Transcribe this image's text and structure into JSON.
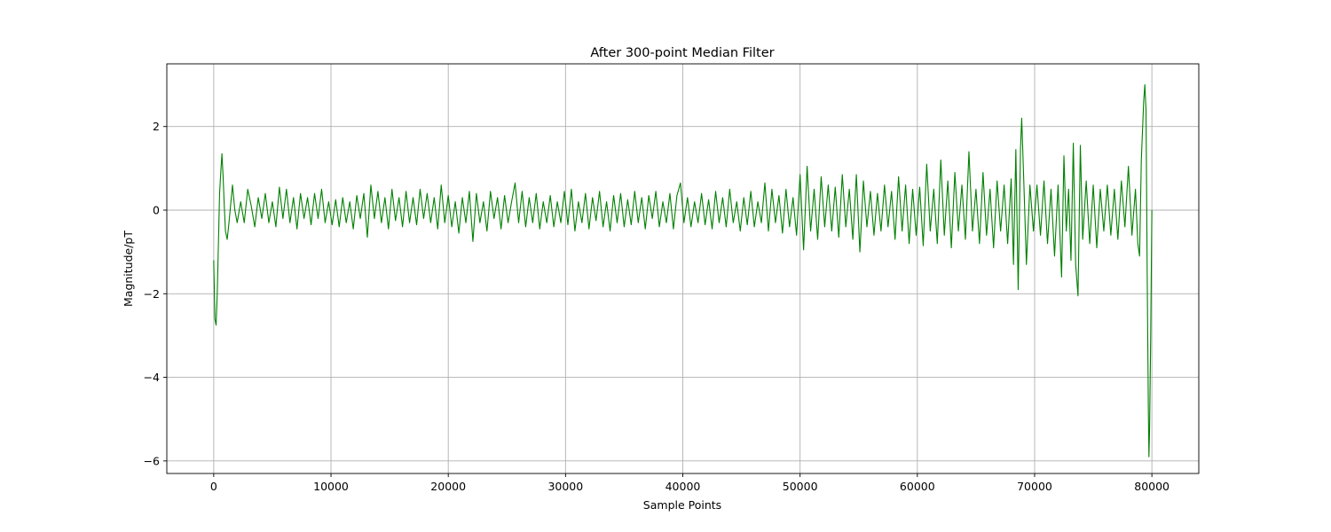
{
  "chart_data": {
    "type": "line",
    "title": "After 300-point Median Filter",
    "xlabel": "Sample Points",
    "ylabel": "Magnitude/pT",
    "xlim": [
      -4000,
      84000
    ],
    "ylim": [
      -6.3,
      3.5
    ],
    "x_ticks": [
      0,
      10000,
      20000,
      30000,
      40000,
      50000,
      60000,
      70000,
      80000
    ],
    "y_ticks": [
      -6,
      -4,
      -2,
      0,
      2
    ],
    "y_tick_labels": [
      "−6",
      "−4",
      "−2",
      "0",
      "2"
    ],
    "grid": true,
    "series": [
      {
        "color": "#008000",
        "points": [
          [
            0,
            -1.2
          ],
          [
            100,
            -2.6
          ],
          [
            200,
            -2.75
          ],
          [
            300,
            -2.0
          ],
          [
            400,
            -0.8
          ],
          [
            500,
            0.4
          ],
          [
            600,
            0.9
          ],
          [
            700,
            1.35
          ],
          [
            800,
            0.8
          ],
          [
            900,
            0.1
          ],
          [
            1000,
            -0.5
          ],
          [
            1150,
            -0.7
          ],
          [
            1300,
            -0.3
          ],
          [
            1500,
            0.3
          ],
          [
            1600,
            0.6
          ],
          [
            1800,
            0.0
          ],
          [
            2000,
            -0.3
          ],
          [
            2300,
            0.2
          ],
          [
            2600,
            -0.3
          ],
          [
            2900,
            0.5
          ],
          [
            3200,
            0.1
          ],
          [
            3500,
            -0.4
          ],
          [
            3800,
            0.3
          ],
          [
            4100,
            -0.2
          ],
          [
            4400,
            0.4
          ],
          [
            4700,
            -0.3
          ],
          [
            5000,
            0.2
          ],
          [
            5300,
            -0.4
          ],
          [
            5600,
            0.55
          ],
          [
            5900,
            -0.2
          ],
          [
            6200,
            0.5
          ],
          [
            6500,
            -0.3
          ],
          [
            6800,
            0.3
          ],
          [
            7100,
            -0.45
          ],
          [
            7400,
            0.4
          ],
          [
            7700,
            -0.2
          ],
          [
            8000,
            0.3
          ],
          [
            8300,
            -0.35
          ],
          [
            8600,
            0.4
          ],
          [
            8900,
            -0.2
          ],
          [
            9200,
            0.5
          ],
          [
            9500,
            -0.3
          ],
          [
            9800,
            0.2
          ],
          [
            10100,
            -0.35
          ],
          [
            10400,
            0.25
          ],
          [
            10700,
            -0.4
          ],
          [
            11000,
            0.3
          ],
          [
            11300,
            -0.3
          ],
          [
            11600,
            0.2
          ],
          [
            11900,
            -0.45
          ],
          [
            12200,
            0.35
          ],
          [
            12500,
            -0.2
          ],
          [
            12800,
            0.4
          ],
          [
            13100,
            -0.65
          ],
          [
            13400,
            0.6
          ],
          [
            13700,
            -0.2
          ],
          [
            14000,
            0.45
          ],
          [
            14300,
            -0.3
          ],
          [
            14600,
            0.3
          ],
          [
            14900,
            -0.45
          ],
          [
            15200,
            0.5
          ],
          [
            15500,
            -0.25
          ],
          [
            15800,
            0.3
          ],
          [
            16100,
            -0.4
          ],
          [
            16400,
            0.45
          ],
          [
            16700,
            -0.3
          ],
          [
            17000,
            0.3
          ],
          [
            17300,
            -0.35
          ],
          [
            17600,
            0.5
          ],
          [
            17900,
            -0.2
          ],
          [
            18200,
            0.4
          ],
          [
            18500,
            -0.3
          ],
          [
            18800,
            0.3
          ],
          [
            19100,
            -0.45
          ],
          [
            19400,
            0.6
          ],
          [
            19700,
            -0.3
          ],
          [
            20000,
            0.35
          ],
          [
            20300,
            -0.4
          ],
          [
            20600,
            0.2
          ],
          [
            20900,
            -0.55
          ],
          [
            21200,
            0.3
          ],
          [
            21500,
            -0.3
          ],
          [
            21800,
            0.45
          ],
          [
            22100,
            -0.75
          ],
          [
            22400,
            0.4
          ],
          [
            22700,
            -0.3
          ],
          [
            23000,
            0.2
          ],
          [
            23300,
            -0.5
          ],
          [
            23600,
            0.45
          ],
          [
            23900,
            -0.2
          ],
          [
            24200,
            0.3
          ],
          [
            24500,
            -0.45
          ],
          [
            24800,
            0.35
          ],
          [
            25100,
            -0.3
          ],
          [
            25400,
            0.2
          ],
          [
            25700,
            0.65
          ],
          [
            26000,
            -0.3
          ],
          [
            26300,
            0.45
          ],
          [
            26600,
            -0.4
          ],
          [
            26900,
            0.3
          ],
          [
            27200,
            -0.3
          ],
          [
            27500,
            0.4
          ],
          [
            27800,
            -0.45
          ],
          [
            28100,
            0.2
          ],
          [
            28400,
            -0.3
          ],
          [
            28700,
            0.35
          ],
          [
            29000,
            -0.4
          ],
          [
            29300,
            0.2
          ],
          [
            29600,
            -0.3
          ],
          [
            29900,
            0.45
          ],
          [
            30200,
            -0.35
          ],
          [
            30500,
            0.5
          ],
          [
            30800,
            -0.5
          ],
          [
            31100,
            0.2
          ],
          [
            31400,
            -0.3
          ],
          [
            31700,
            0.4
          ],
          [
            32000,
            -0.45
          ],
          [
            32300,
            0.3
          ],
          [
            32600,
            -0.25
          ],
          [
            32900,
            0.45
          ],
          [
            33200,
            -0.4
          ],
          [
            33500,
            0.2
          ],
          [
            33800,
            -0.5
          ],
          [
            34100,
            0.35
          ],
          [
            34400,
            -0.3
          ],
          [
            34700,
            0.4
          ],
          [
            35000,
            -0.4
          ],
          [
            35300,
            0.25
          ],
          [
            35600,
            -0.35
          ],
          [
            35900,
            0.45
          ],
          [
            36200,
            -0.3
          ],
          [
            36500,
            0.3
          ],
          [
            36800,
            -0.45
          ],
          [
            37100,
            0.35
          ],
          [
            37400,
            -0.2
          ],
          [
            37700,
            0.45
          ],
          [
            38000,
            -0.4
          ],
          [
            38300,
            0.2
          ],
          [
            38600,
            -0.3
          ],
          [
            38900,
            0.4
          ],
          [
            39200,
            -0.45
          ],
          [
            39500,
            0.35
          ],
          [
            39800,
            0.65
          ],
          [
            40100,
            -0.3
          ],
          [
            40400,
            0.3
          ],
          [
            40700,
            -0.4
          ],
          [
            41000,
            0.2
          ],
          [
            41300,
            -0.3
          ],
          [
            41600,
            0.4
          ],
          [
            41900,
            -0.35
          ],
          [
            42200,
            0.25
          ],
          [
            42500,
            -0.45
          ],
          [
            42800,
            0.45
          ],
          [
            43100,
            -0.3
          ],
          [
            43400,
            0.3
          ],
          [
            43700,
            -0.4
          ],
          [
            44000,
            0.5
          ],
          [
            44300,
            -0.3
          ],
          [
            44600,
            0.2
          ],
          [
            44900,
            -0.5
          ],
          [
            45200,
            0.3
          ],
          [
            45500,
            -0.35
          ],
          [
            45800,
            0.45
          ],
          [
            46100,
            -0.4
          ],
          [
            46400,
            0.2
          ],
          [
            46700,
            -0.3
          ],
          [
            47000,
            0.65
          ],
          [
            47300,
            -0.5
          ],
          [
            47600,
            0.5
          ],
          [
            47900,
            -0.3
          ],
          [
            48200,
            0.35
          ],
          [
            48500,
            -0.55
          ],
          [
            48800,
            0.5
          ],
          [
            49100,
            -0.4
          ],
          [
            49400,
            0.3
          ],
          [
            49700,
            -0.6
          ],
          [
            50000,
            0.85
          ],
          [
            50300,
            -0.95
          ],
          [
            50600,
            1.05
          ],
          [
            50900,
            -0.5
          ],
          [
            51200,
            0.5
          ],
          [
            51500,
            -0.7
          ],
          [
            51800,
            0.8
          ],
          [
            52100,
            -0.4
          ],
          [
            52400,
            0.6
          ],
          [
            52700,
            -0.5
          ],
          [
            53000,
            0.55
          ],
          [
            53300,
            -0.65
          ],
          [
            53600,
            0.85
          ],
          [
            53900,
            -0.4
          ],
          [
            54200,
            0.5
          ],
          [
            54500,
            -0.7
          ],
          [
            54800,
            0.85
          ],
          [
            55100,
            -1.0
          ],
          [
            55400,
            0.7
          ],
          [
            55700,
            -0.4
          ],
          [
            56000,
            0.45
          ],
          [
            56300,
            -0.6
          ],
          [
            56600,
            0.4
          ],
          [
            56900,
            -0.5
          ],
          [
            57200,
            0.6
          ],
          [
            57500,
            -0.4
          ],
          [
            57800,
            0.45
          ],
          [
            58100,
            -0.7
          ],
          [
            58400,
            0.8
          ],
          [
            58700,
            -0.5
          ],
          [
            59000,
            0.6
          ],
          [
            59300,
            -0.8
          ],
          [
            59600,
            0.5
          ],
          [
            59900,
            -0.6
          ],
          [
            60200,
            0.55
          ],
          [
            60500,
            -0.85
          ],
          [
            60800,
            1.1
          ],
          [
            61100,
            -0.5
          ],
          [
            61400,
            0.5
          ],
          [
            61700,
            -0.8
          ],
          [
            62000,
            1.2
          ],
          [
            62300,
            -0.6
          ],
          [
            62600,
            0.7
          ],
          [
            62900,
            -0.9
          ],
          [
            63200,
            0.9
          ],
          [
            63500,
            -0.5
          ],
          [
            63800,
            0.6
          ],
          [
            64100,
            -0.7
          ],
          [
            64400,
            1.4
          ],
          [
            64700,
            -0.5
          ],
          [
            65000,
            0.5
          ],
          [
            65300,
            -0.8
          ],
          [
            65600,
            0.9
          ],
          [
            65900,
            -0.6
          ],
          [
            66200,
            0.5
          ],
          [
            66500,
            -0.9
          ],
          [
            66800,
            0.7
          ],
          [
            67100,
            -0.5
          ],
          [
            67400,
            0.6
          ],
          [
            67700,
            -0.8
          ],
          [
            68000,
            0.75
          ],
          [
            68200,
            -1.3
          ],
          [
            68400,
            1.45
          ],
          [
            68600,
            -1.9
          ],
          [
            68800,
            1.5
          ],
          [
            68900,
            2.2
          ],
          [
            69100,
            0.5
          ],
          [
            69300,
            -1.3
          ],
          [
            69600,
            0.6
          ],
          [
            69900,
            -0.5
          ],
          [
            70200,
            0.6
          ],
          [
            70500,
            -0.6
          ],
          [
            70800,
            0.7
          ],
          [
            71100,
            -0.8
          ],
          [
            71400,
            0.5
          ],
          [
            71700,
            -1.1
          ],
          [
            72000,
            0.6
          ],
          [
            72300,
            -1.6
          ],
          [
            72500,
            1.3
          ],
          [
            72700,
            -0.5
          ],
          [
            72900,
            0.5
          ],
          [
            73100,
            -1.2
          ],
          [
            73300,
            1.6
          ],
          [
            73500,
            -1.3
          ],
          [
            73700,
            -2.05
          ],
          [
            73900,
            1.55
          ],
          [
            74100,
            -0.7
          ],
          [
            74400,
            0.7
          ],
          [
            74700,
            -0.8
          ],
          [
            75000,
            0.6
          ],
          [
            75300,
            -0.9
          ],
          [
            75600,
            0.5
          ],
          [
            75900,
            -0.5
          ],
          [
            76200,
            0.6
          ],
          [
            76500,
            -0.6
          ],
          [
            76800,
            0.5
          ],
          [
            77100,
            -0.7
          ],
          [
            77400,
            0.7
          ],
          [
            77700,
            -0.4
          ],
          [
            78000,
            1.05
          ],
          [
            78300,
            -0.6
          ],
          [
            78600,
            0.5
          ],
          [
            78800,
            -0.8
          ],
          [
            78950,
            -1.1
          ],
          [
            79100,
            1.2
          ],
          [
            79300,
            2.6
          ],
          [
            79400,
            3.0
          ],
          [
            79500,
            2.4
          ],
          [
            79600,
            -1.5
          ],
          [
            79700,
            -4.8
          ],
          [
            79750,
            -5.9
          ],
          [
            79800,
            -5.3
          ],
          [
            79900,
            -3.0
          ],
          [
            80000,
            0.0
          ]
        ]
      }
    ]
  }
}
